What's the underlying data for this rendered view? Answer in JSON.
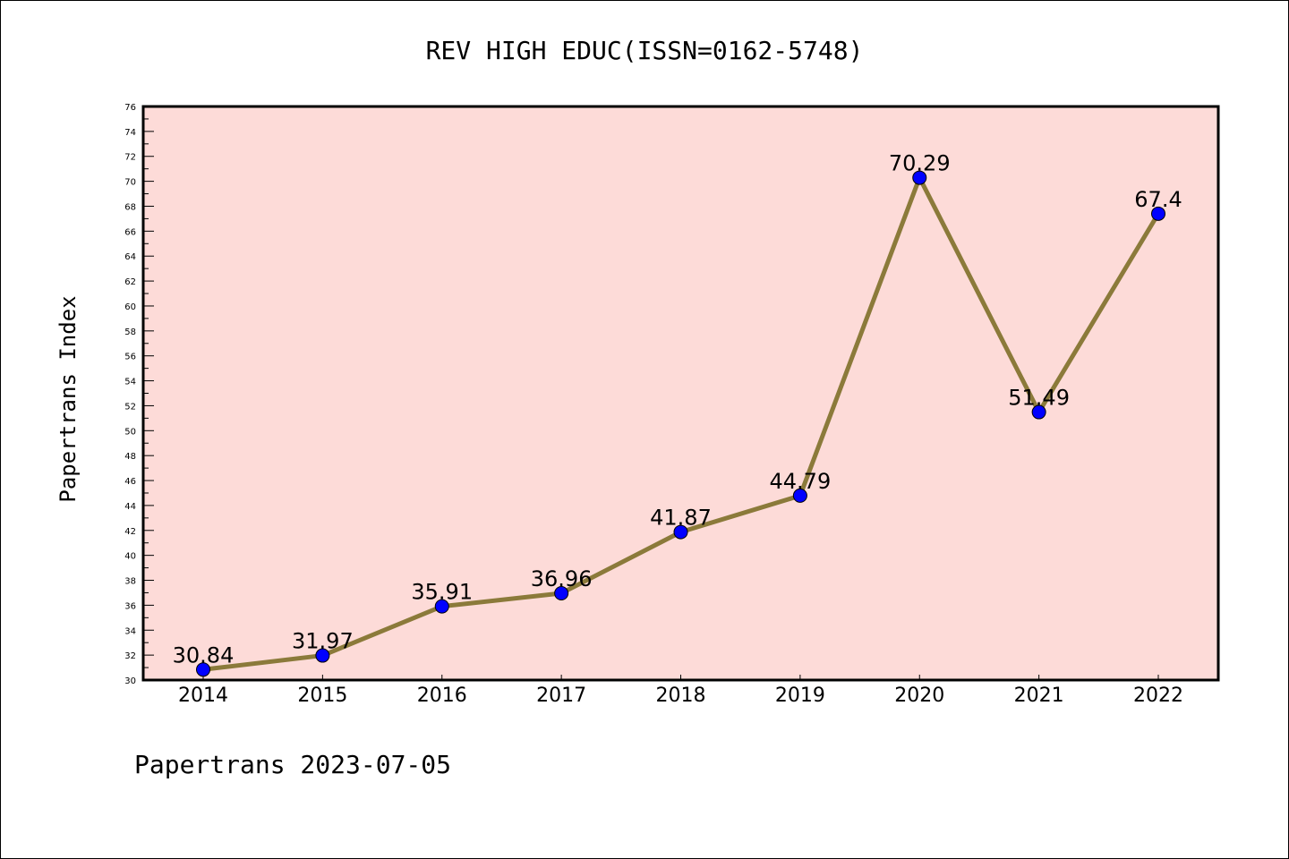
{
  "chart_data": {
    "type": "line",
    "title": "REV HIGH EDUC(ISSN=0162-5748)",
    "xlabel": "",
    "ylabel": "Papertrans Index",
    "categories": [
      "2014",
      "2015",
      "2016",
      "2017",
      "2018",
      "2019",
      "2020",
      "2021",
      "2022"
    ],
    "series": [
      {
        "values": [
          30.84,
          31.97,
          35.91,
          36.96,
          41.87,
          44.79,
          70.29,
          51.49,
          67.4
        ],
        "labels": [
          "30.84",
          "31.97",
          "35.91",
          "36.96",
          "41.87",
          "44.79",
          "70.29",
          "51.49",
          "67.4"
        ]
      }
    ],
    "ylim": [
      30,
      76
    ],
    "ytick_step": 2,
    "grid": false,
    "colors": {
      "plot_background": "#fddbd8",
      "line": "#8b7a3a",
      "marker": "#0000ff"
    }
  },
  "footer": {
    "text": "Papertrans 2023-07-05"
  }
}
